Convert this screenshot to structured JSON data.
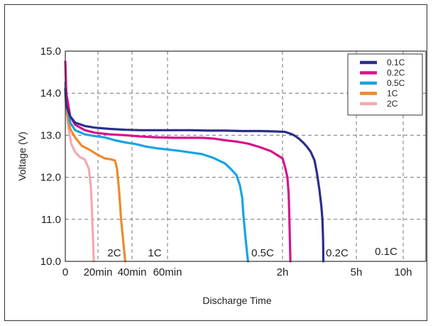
{
  "chart_data": {
    "type": "line",
    "xlabel": "Discharge Time",
    "ylabel": "Voltage (V)",
    "ylim": [
      10.0,
      15.0
    ],
    "yticks": [
      "10.0",
      "11.0",
      "12.0",
      "13.0",
      "14.0",
      "15.0"
    ],
    "xticks": [
      "0",
      "20min",
      "40min",
      "60min",
      "2h",
      "5h",
      "10h"
    ],
    "grid": true,
    "legend_position": "top-right",
    "series": [
      {
        "name": "0.1C",
        "color": "#2b2f8a",
        "points": [
          [
            0,
            14.1
          ],
          [
            0.01,
            13.7
          ],
          [
            0.05,
            13.45
          ],
          [
            0.1,
            13.3
          ],
          [
            0.2,
            13.22
          ],
          [
            0.3,
            13.18
          ],
          [
            0.45,
            13.15
          ],
          [
            0.6,
            13.13
          ],
          [
            0.75,
            13.12
          ],
          [
            0.9,
            13.12
          ],
          [
            1.05,
            13.12
          ],
          [
            1.2,
            13.12
          ],
          [
            1.35,
            13.11
          ],
          [
            1.5,
            13.11
          ],
          [
            1.65,
            13.1
          ],
          [
            1.8,
            13.1
          ],
          [
            1.95,
            13.09
          ],
          [
            2.1,
            13.08
          ],
          [
            2.25,
            13.05
          ],
          [
            2.4,
            13.02
          ],
          [
            2.55,
            12.97
          ],
          [
            2.7,
            12.9
          ],
          [
            2.85,
            12.82
          ],
          [
            3,
            12.72
          ],
          [
            3.15,
            12.6
          ],
          [
            3.3,
            12.4
          ],
          [
            3.4,
            12.1
          ],
          [
            3.5,
            11.7
          ],
          [
            3.58,
            11.3
          ],
          [
            3.62,
            11.0
          ],
          [
            3.65,
            10.5
          ],
          [
            3.66,
            10.0
          ]
        ]
      },
      {
        "name": "0.2C",
        "color": "#d4148c",
        "points": [
          [
            0,
            14.75
          ],
          [
            0.01,
            14.0
          ],
          [
            0.05,
            13.45
          ],
          [
            0.1,
            13.25
          ],
          [
            0.2,
            13.12
          ],
          [
            0.3,
            13.06
          ],
          [
            0.45,
            13.02
          ],
          [
            0.6,
            13.0
          ],
          [
            0.75,
            12.97
          ],
          [
            0.9,
            12.95
          ],
          [
            1.05,
            12.94
          ],
          [
            1.2,
            12.94
          ],
          [
            1.3,
            12.94
          ],
          [
            1.4,
            12.92
          ],
          [
            1.5,
            12.88
          ],
          [
            1.6,
            12.85
          ],
          [
            1.7,
            12.8
          ],
          [
            1.8,
            12.72
          ],
          [
            1.9,
            12.62
          ],
          [
            2,
            12.45
          ],
          [
            2.1,
            12.25
          ],
          [
            2.2,
            12.0
          ],
          [
            2.25,
            11.6
          ],
          [
            2.28,
            11.0
          ],
          [
            2.3,
            10.5
          ],
          [
            2.32,
            10.0
          ]
        ]
      },
      {
        "name": "0.5C",
        "color": "#18a4e0",
        "points": [
          [
            0,
            14.25
          ],
          [
            0.01,
            13.8
          ],
          [
            0.05,
            13.3
          ],
          [
            0.1,
            13.12
          ],
          [
            0.2,
            13.02
          ],
          [
            0.3,
            12.98
          ],
          [
            0.4,
            12.95
          ],
          [
            0.5,
            12.88
          ],
          [
            0.6,
            12.83
          ],
          [
            0.7,
            12.79
          ],
          [
            0.8,
            12.73
          ],
          [
            0.9,
            12.69
          ],
          [
            1,
            12.66
          ],
          [
            1.1,
            12.63
          ],
          [
            1.2,
            12.59
          ],
          [
            1.3,
            12.55
          ],
          [
            1.4,
            12.46
          ],
          [
            1.5,
            12.33
          ],
          [
            1.55,
            12.2
          ],
          [
            1.6,
            12.05
          ],
          [
            1.63,
            11.8
          ],
          [
            1.65,
            11.5
          ],
          [
            1.66,
            11.1
          ],
          [
            1.68,
            10.5
          ],
          [
            1.7,
            10.0
          ]
        ]
      },
      {
        "name": "1C",
        "color": "#ee8a2a",
        "points": [
          [
            0,
            14.0
          ],
          [
            0.01,
            13.6
          ],
          [
            0.05,
            13.15
          ],
          [
            0.1,
            12.95
          ],
          [
            0.167,
            12.75
          ],
          [
            0.25,
            12.65
          ],
          [
            0.333,
            12.53
          ],
          [
            0.4,
            12.45
          ],
          [
            0.45,
            12.43
          ],
          [
            0.5,
            12.4
          ],
          [
            0.52,
            12.2
          ],
          [
            0.54,
            11.7
          ],
          [
            0.56,
            11.0
          ],
          [
            0.58,
            10.5
          ],
          [
            0.6,
            10.0
          ]
        ]
      },
      {
        "name": "2C",
        "color": "#f2a9b2",
        "points": [
          [
            0,
            14.15
          ],
          [
            0.01,
            13.7
          ],
          [
            0.03,
            13.2
          ],
          [
            0.06,
            12.8
          ],
          [
            0.1,
            12.6
          ],
          [
            0.15,
            12.48
          ],
          [
            0.2,
            12.42
          ],
          [
            0.24,
            12.2
          ],
          [
            0.26,
            11.8
          ],
          [
            0.27,
            11.3
          ],
          [
            0.28,
            10.7
          ],
          [
            0.29,
            10.0
          ]
        ]
      }
    ],
    "curve_labels": [
      "2C",
      "1C",
      "0.5C",
      "0.2C",
      "0.1C"
    ]
  }
}
